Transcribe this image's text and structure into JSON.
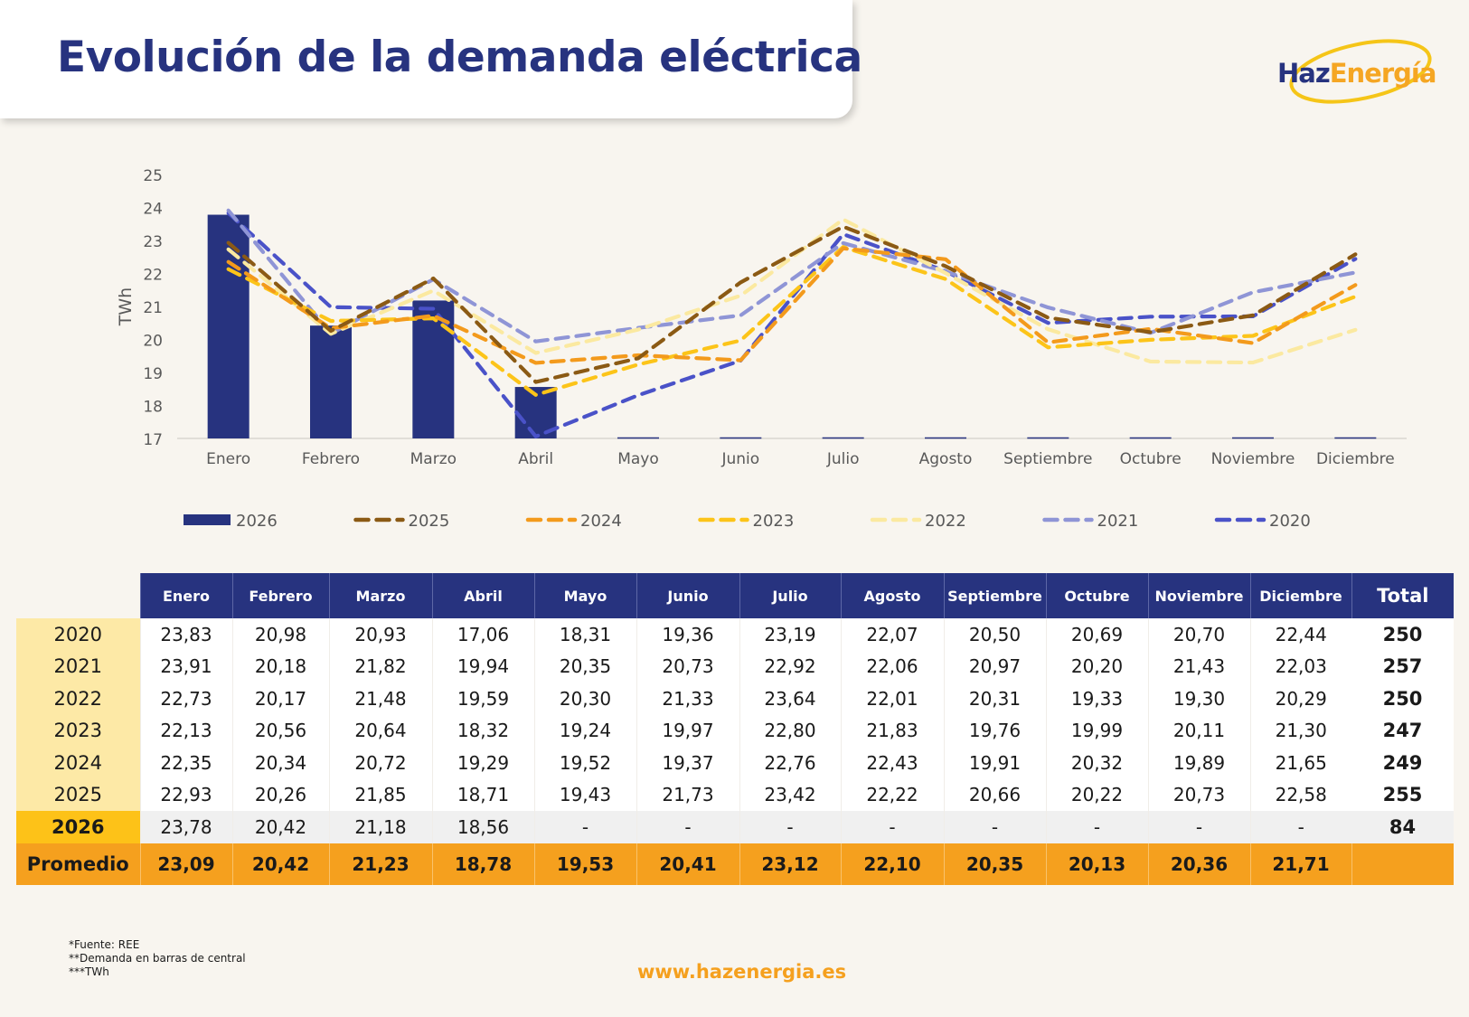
{
  "header": {
    "title": "Evolución de la demanda eléctrica"
  },
  "logo": {
    "part1": "Haz",
    "part2": "Energía",
    "colors": {
      "navy": "#27337f",
      "orange": "#f5a623",
      "yellow": "#f5c518"
    }
  },
  "chart_data": {
    "type": "bar+line",
    "ylabel": "TWh",
    "ylim": [
      17,
      25
    ],
    "yticks": [
      17,
      18,
      19,
      20,
      21,
      22,
      23,
      24,
      25
    ],
    "categories": [
      "Enero",
      "Febrero",
      "Marzo",
      "Abril",
      "Mayo",
      "Junio",
      "Julio",
      "Agosto",
      "Septiembre",
      "Octubre",
      "Noviembre",
      "Diciembre"
    ],
    "legend_position": "bottom",
    "bars": {
      "name": "2026",
      "color": "#27337f",
      "values": [
        23.78,
        20.42,
        21.18,
        18.56,
        null,
        null,
        null,
        null,
        null,
        null,
        null,
        null
      ]
    },
    "series": [
      {
        "name": "2025",
        "color": "#8b5a14",
        "values": [
          22.93,
          20.26,
          21.85,
          18.71,
          19.43,
          21.73,
          23.42,
          22.22,
          20.66,
          20.22,
          20.73,
          22.58
        ]
      },
      {
        "name": "2024",
        "color": "#f39a1c",
        "values": [
          22.35,
          20.34,
          20.72,
          19.29,
          19.52,
          19.37,
          22.76,
          22.43,
          19.91,
          20.32,
          19.89,
          21.65
        ]
      },
      {
        "name": "2023",
        "color": "#fcc419",
        "values": [
          22.13,
          20.56,
          20.64,
          18.32,
          19.24,
          19.97,
          22.8,
          21.83,
          19.76,
          19.99,
          20.11,
          21.3
        ]
      },
      {
        "name": "2022",
        "color": "#fbe9a0",
        "values": [
          22.73,
          20.17,
          21.48,
          19.59,
          20.3,
          21.33,
          23.64,
          22.01,
          20.31,
          19.33,
          19.3,
          20.29
        ]
      },
      {
        "name": "2021",
        "color": "#8f95d6",
        "values": [
          23.91,
          20.18,
          21.82,
          19.94,
          20.35,
          20.73,
          22.92,
          22.06,
          20.97,
          20.2,
          21.43,
          22.03
        ]
      },
      {
        "name": "2020",
        "color": "#4a52c8",
        "values": [
          23.83,
          20.98,
          20.93,
          17.06,
          18.31,
          19.36,
          23.19,
          22.07,
          20.5,
          20.69,
          20.7,
          22.44
        ]
      }
    ]
  },
  "table": {
    "columns": [
      "Enero",
      "Febrero",
      "Marzo",
      "Abril",
      "Mayo",
      "Junio",
      "Julio",
      "Agosto",
      "Septiembre",
      "Octubre",
      "Noviembre",
      "Diciembre",
      "Total"
    ],
    "rows": [
      {
        "year": "2020",
        "values": [
          "23,83",
          "20,98",
          "20,93",
          "17,06",
          "18,31",
          "19,36",
          "23,19",
          "22,07",
          "20,50",
          "20,69",
          "20,70",
          "22,44"
        ],
        "total": "250"
      },
      {
        "year": "2021",
        "values": [
          "23,91",
          "20,18",
          "21,82",
          "19,94",
          "20,35",
          "20,73",
          "22,92",
          "22,06",
          "20,97",
          "20,20",
          "21,43",
          "22,03"
        ],
        "total": "257"
      },
      {
        "year": "2022",
        "values": [
          "22,73",
          "20,17",
          "21,48",
          "19,59",
          "20,30",
          "21,33",
          "23,64",
          "22,01",
          "20,31",
          "19,33",
          "19,30",
          "20,29"
        ],
        "total": "250"
      },
      {
        "year": "2023",
        "values": [
          "22,13",
          "20,56",
          "20,64",
          "18,32",
          "19,24",
          "19,97",
          "22,80",
          "21,83",
          "19,76",
          "19,99",
          "20,11",
          "21,30"
        ],
        "total": "247"
      },
      {
        "year": "2024",
        "values": [
          "22,35",
          "20,34",
          "20,72",
          "19,29",
          "19,52",
          "19,37",
          "22,76",
          "22,43",
          "19,91",
          "20,32",
          "19,89",
          "21,65"
        ],
        "total": "249"
      },
      {
        "year": "2025",
        "values": [
          "22,93",
          "20,26",
          "21,85",
          "18,71",
          "19,43",
          "21,73",
          "23,42",
          "22,22",
          "20,66",
          "20,22",
          "20,73",
          "22,58"
        ],
        "total": "255"
      },
      {
        "year": "2026",
        "values": [
          "23,78",
          "20,42",
          "21,18",
          "18,56",
          "-",
          "-",
          "-",
          "-",
          "-",
          "-",
          "-",
          "-"
        ],
        "total": "84",
        "current": true
      }
    ],
    "average": {
      "label": "Promedio",
      "values": [
        "23,09",
        "20,42",
        "21,23",
        "18,78",
        "19,53",
        "20,41",
        "23,12",
        "22,10",
        "20,35",
        "20,13",
        "20,36",
        "21,71"
      ],
      "total": ""
    }
  },
  "footer": {
    "notes": [
      "*Fuente: REE",
      "**Demanda en barras de central",
      "***TWh"
    ],
    "website": "www.hazenergia.es"
  }
}
